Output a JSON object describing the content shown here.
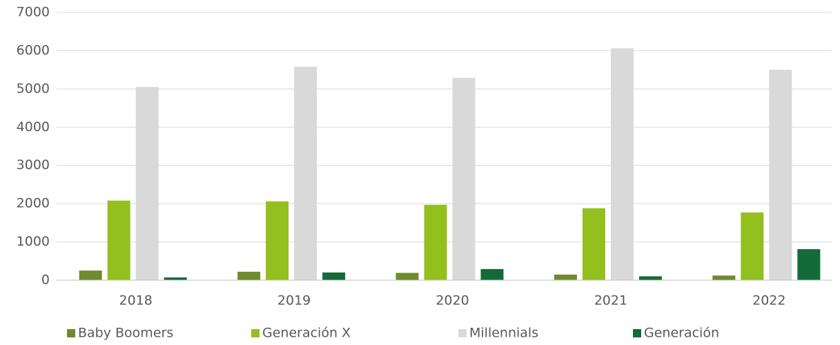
{
  "chart_data": {
    "type": "bar",
    "categories": [
      "2018",
      "2019",
      "2020",
      "2021",
      "2022"
    ],
    "series": [
      {
        "name": "Baby Boomers",
        "color": "#6e8b2e",
        "values": [
          250,
          220,
          190,
          145,
          120
        ]
      },
      {
        "name": "Generación X",
        "color": "#93c01f",
        "values": [
          2080,
          2060,
          1970,
          1880,
          1770
        ]
      },
      {
        "name": "Millennials",
        "color": "#d9d9d9",
        "values": [
          5050,
          5580,
          5290,
          6060,
          5500
        ]
      },
      {
        "name": "Generación",
        "color": "#136b38",
        "values": [
          70,
          200,
          290,
          100,
          810
        ]
      }
    ],
    "ylim": [
      0,
      7000
    ],
    "yticks": [
      0,
      1000,
      2000,
      3000,
      4000,
      5000,
      6000,
      7000
    ],
    "grid": true,
    "legend": "bottom"
  }
}
